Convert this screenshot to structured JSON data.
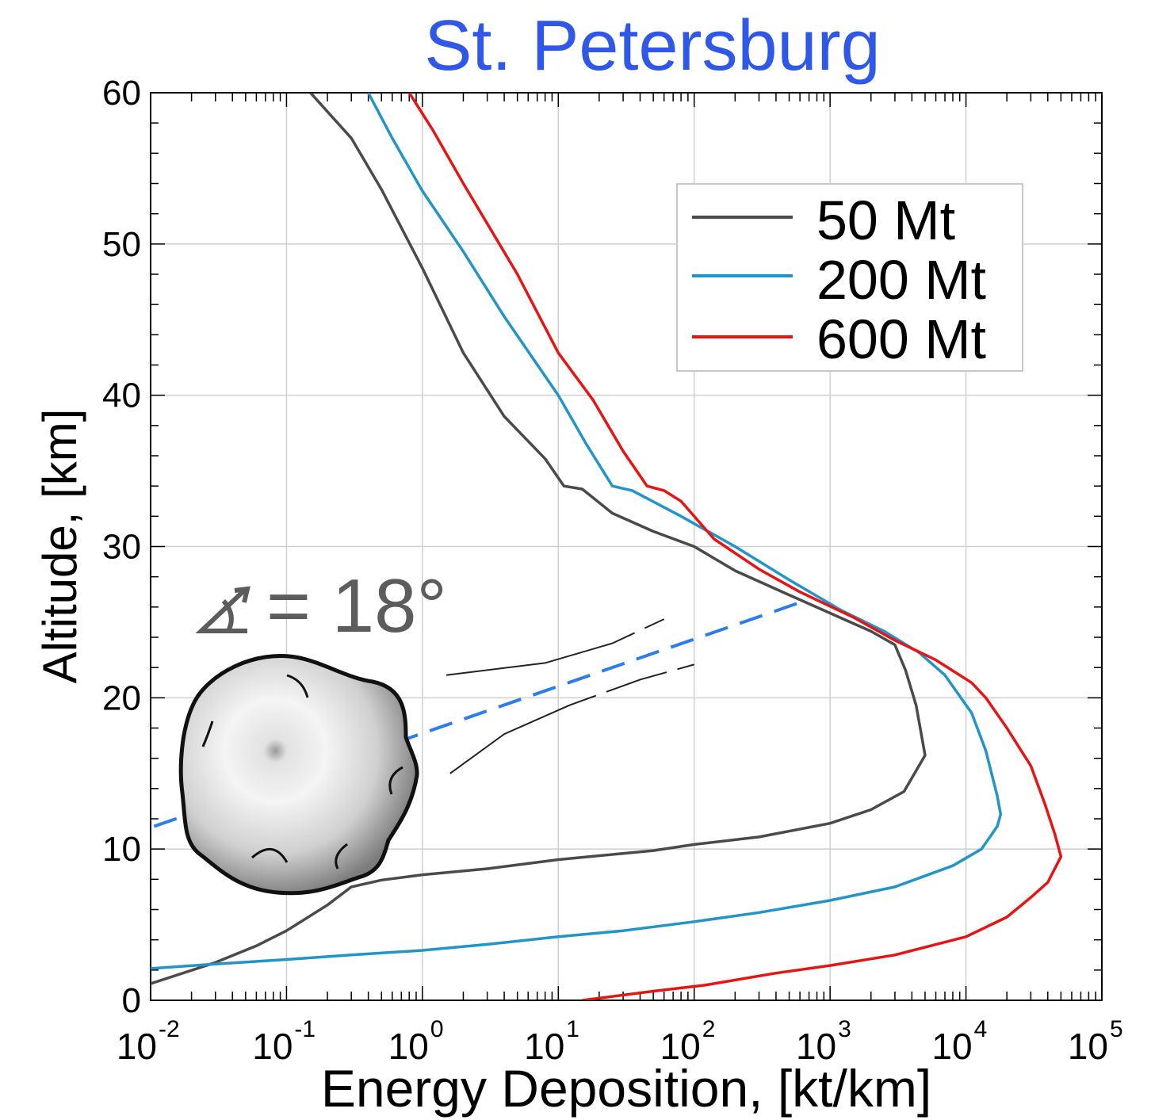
{
  "chart_data": {
    "type": "line",
    "title": "St. Petersburg",
    "title_color": "#2f57e8",
    "xlabel": "Energy Deposition, [kt/km]",
    "ylabel": "Altitude, [km]",
    "x_scale": "log",
    "xlim": [
      0.01,
      100000
    ],
    "ylim": [
      0,
      60
    ],
    "grid": true,
    "x_ticks": [
      {
        "base": "10",
        "exp": "-2",
        "value": 0.01
      },
      {
        "base": "10",
        "exp": "-1",
        "value": 0.1
      },
      {
        "base": "10",
        "exp": "0",
        "value": 1
      },
      {
        "base": "10",
        "exp": "1",
        "value": 10
      },
      {
        "base": "10",
        "exp": "2",
        "value": 100
      },
      {
        "base": "10",
        "exp": "3",
        "value": 1000
      },
      {
        "base": "10",
        "exp": "4",
        "value": 10000
      },
      {
        "base": "10",
        "exp": "5",
        "value": 100000
      }
    ],
    "y_ticks": [
      "0",
      "10",
      "20",
      "30",
      "40",
      "50",
      "60"
    ],
    "legend_position": "upper-right",
    "annotation": {
      "angle_text": "= 18°",
      "trajectory_color": "#2b7de9",
      "trajectory_line": [
        [
          0.0106,
          11.5
        ],
        [
          600,
          26.3
        ]
      ],
      "wake_upper": [
        [
          1.5,
          21.5
        ],
        [
          8,
          22.3
        ],
        [
          25,
          23.6
        ],
        [
          60,
          25.2
        ]
      ],
      "wake_lower": [
        [
          1.6,
          15
        ],
        [
          4,
          17.6
        ],
        [
          12,
          19.5
        ],
        [
          40,
          21.2
        ],
        [
          100,
          22.2
        ]
      ]
    },
    "series": [
      {
        "name": "50 Mt",
        "color": "#4a4a4a",
        "points": [
          [
            0.01,
            1.1
          ],
          [
            0.03,
            2.5
          ],
          [
            0.06,
            3.6
          ],
          [
            0.1,
            4.6
          ],
          [
            0.2,
            6.3
          ],
          [
            0.3,
            7.5
          ],
          [
            0.5,
            7.95
          ],
          [
            1,
            8.3
          ],
          [
            3,
            8.7
          ],
          [
            10,
            9.3
          ],
          [
            50,
            9.9
          ],
          [
            100,
            10.3
          ],
          [
            300,
            10.8
          ],
          [
            1000,
            11.7
          ],
          [
            2000,
            12.6
          ],
          [
            3500,
            13.8
          ],
          [
            5000,
            16.2
          ],
          [
            4300,
            19.5
          ],
          [
            3600,
            21.8
          ],
          [
            3000,
            23.5
          ],
          [
            2000,
            24.4
          ],
          [
            1000,
            25.6
          ],
          [
            500,
            26.8
          ],
          [
            200,
            28.4
          ],
          [
            100,
            30.0
          ],
          [
            50,
            31.0
          ],
          [
            25,
            32.2
          ],
          [
            15,
            33.8
          ],
          [
            11,
            34.0
          ],
          [
            8,
            35.8
          ],
          [
            4,
            38.6
          ],
          [
            2,
            42.8
          ],
          [
            1,
            48.4
          ],
          [
            0.5,
            53.6
          ],
          [
            0.3,
            57.0
          ],
          [
            0.15,
            60.0
          ]
        ]
      },
      {
        "name": "200 Mt",
        "color": "#2195c8",
        "points": [
          [
            0.01,
            2.1
          ],
          [
            0.03,
            2.4
          ],
          [
            0.1,
            2.7
          ],
          [
            0.3,
            3.0
          ],
          [
            1,
            3.3
          ],
          [
            3,
            3.7
          ],
          [
            10,
            4.2
          ],
          [
            30,
            4.6
          ],
          [
            100,
            5.2
          ],
          [
            300,
            5.8
          ],
          [
            1000,
            6.6
          ],
          [
            3000,
            7.5
          ],
          [
            8000,
            8.9
          ],
          [
            13000,
            10.0
          ],
          [
            17000,
            11.5
          ],
          [
            18000,
            12.3
          ],
          [
            17000,
            13.5
          ],
          [
            14000,
            16.5
          ],
          [
            11000,
            19.0
          ],
          [
            7000,
            21.5
          ],
          [
            4500,
            23.0
          ],
          [
            2500,
            24.4
          ],
          [
            1200,
            25.8
          ],
          [
            500,
            27.8
          ],
          [
            200,
            30.0
          ],
          [
            80,
            32.0
          ],
          [
            35,
            33.7
          ],
          [
            25,
            34.0
          ],
          [
            16,
            36.8
          ],
          [
            10,
            40.0
          ],
          [
            4,
            45.2
          ],
          [
            2,
            49.5
          ],
          [
            1,
            53.5
          ],
          [
            0.6,
            57.0
          ],
          [
            0.4,
            60.0
          ]
        ]
      },
      {
        "name": "600 Mt",
        "color": "#e81414",
        "points": [
          [
            15,
            0
          ],
          [
            50,
            0.6
          ],
          [
            120,
            1.0
          ],
          [
            400,
            1.8
          ],
          [
            1000,
            2.3
          ],
          [
            3000,
            3.0
          ],
          [
            10000,
            4.2
          ],
          [
            20000,
            5.5
          ],
          [
            30000,
            6.8
          ],
          [
            40000,
            7.8
          ],
          [
            50000,
            9.5
          ],
          [
            45000,
            11.0
          ],
          [
            38000,
            13.0
          ],
          [
            30000,
            15.5
          ],
          [
            20000,
            18.0
          ],
          [
            14000,
            20.0
          ],
          [
            11000,
            21.0
          ],
          [
            6000,
            22.5
          ],
          [
            3000,
            23.8
          ],
          [
            1500,
            25.3
          ],
          [
            600,
            27.0
          ],
          [
            300,
            28.5
          ],
          [
            140,
            30.5
          ],
          [
            80,
            33.0
          ],
          [
            60,
            33.7
          ],
          [
            45,
            34.0
          ],
          [
            30,
            36.3
          ],
          [
            18,
            39.7
          ],
          [
            10,
            42.8
          ],
          [
            5,
            48.0
          ],
          [
            2,
            54.0
          ],
          [
            1.2,
            57.5
          ],
          [
            0.8,
            60.0
          ]
        ]
      }
    ]
  }
}
